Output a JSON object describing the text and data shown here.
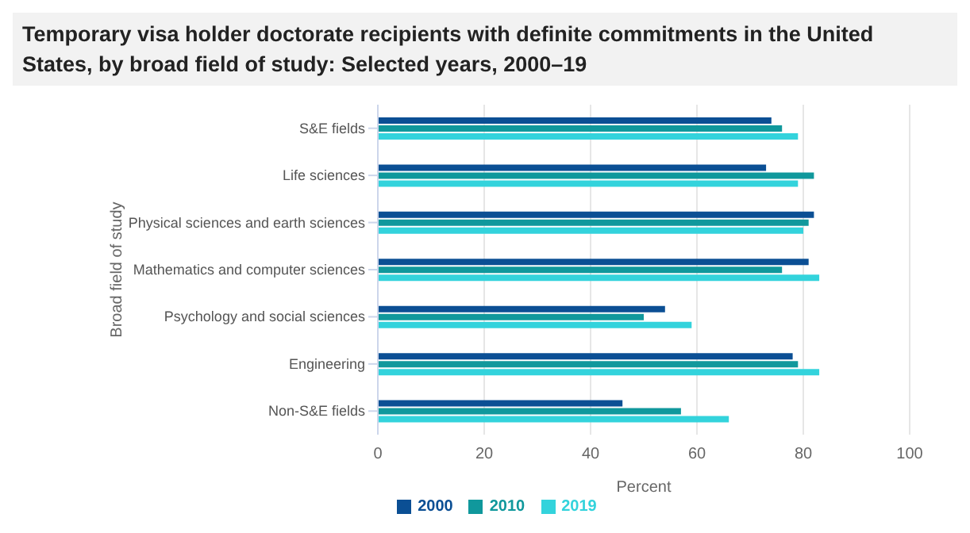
{
  "chart_data": {
    "type": "bar",
    "orientation": "horizontal",
    "title": "Temporary visa holder doctorate recipients with definite commitments in the United States, by broad field of study: Selected years, 2000–19",
    "xlabel": "Percent",
    "ylabel": "Broad field of study",
    "categories": [
      "S&E fields",
      "Life sciences",
      "Physical sciences and earth sciences",
      "Mathematics and computer sciences",
      "Psychology and social sciences",
      "Engineering",
      "Non-S&E fields"
    ],
    "series": [
      {
        "name": "2000",
        "color": "#0b4f94",
        "values": [
          74,
          73,
          82,
          81,
          54,
          78,
          46
        ]
      },
      {
        "name": "2010",
        "color": "#10989c",
        "values": [
          76,
          82,
          81,
          76,
          50,
          79,
          57
        ]
      },
      {
        "name": "2019",
        "color": "#33d3dc",
        "values": [
          79,
          79,
          80,
          83,
          59,
          83,
          66
        ]
      }
    ],
    "xlim": [
      0,
      100
    ],
    "xticks": [
      0,
      20,
      40,
      60,
      80,
      100
    ],
    "grid": "x",
    "legend": "bottom"
  }
}
